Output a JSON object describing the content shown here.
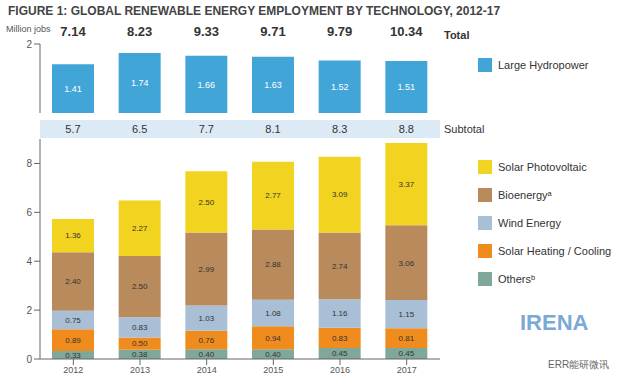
{
  "title": "FIGURE 1: GLOBAL RENEWABLE ENERGY EMPLOYMENT BY TECHNOLOGY, 2012-17",
  "annotations": [
    "IRENA",
    "ERR能研微讯"
  ],
  "chart_data": [
    {
      "type": "bar",
      "y_label": "Million jobs",
      "categories": [
        "2012",
        "2013",
        "2014",
        "2015",
        "2016",
        "2017"
      ],
      "series": [
        {
          "name": "Large Hydropower",
          "color": "#41a5d8",
          "values": [
            1.41,
            1.74,
            1.66,
            1.63,
            1.52,
            1.51
          ]
        }
      ],
      "totals": [
        7.14,
        8.23,
        9.33,
        9.71,
        9.79,
        10.34
      ],
      "totals_label": "Total",
      "ylim": [
        0,
        2
      ],
      "yticks": [
        0,
        2
      ],
      "data_labels": true,
      "tick_labels": "y",
      "grid": false
    },
    {
      "type": "bar",
      "stacked": true,
      "categories": [
        "2012",
        "2013",
        "2014",
        "2015",
        "2016",
        "2017"
      ],
      "series": [
        {
          "name": "Othersᵇ",
          "color": "#7fa89a",
          "values": [
            0.33,
            0.38,
            0.4,
            0.4,
            0.45,
            0.45
          ],
          "value_labels": [
            "0.33",
            "0.38",
            "0.40",
            "0.40",
            "0.45",
            "0.45"
          ]
        },
        {
          "name": "Solar Heating / Cooling",
          "color": "#f08c1e",
          "values": [
            0.89,
            0.5,
            0.76,
            0.94,
            0.83,
            0.81
          ],
          "value_labels": [
            "0.89",
            "0.50",
            "0.76",
            "0.94",
            "0.83",
            "0.81"
          ]
        },
        {
          "name": "Wind Energy",
          "color": "#a9bfd6",
          "values": [
            0.75,
            0.83,
            1.03,
            1.08,
            1.16,
            1.15
          ],
          "value_labels": [
            "0.75",
            "0.83",
            "1.03",
            "1.08",
            "1.16",
            "1.15"
          ]
        },
        {
          "name": "Bioenergyᵃ",
          "color": "#b88a5c",
          "values": [
            2.4,
            2.5,
            2.99,
            2.88,
            2.74,
            3.06
          ],
          "value_labels": [
            "2.40",
            "2.50",
            "2.99",
            "2.88",
            "2.74",
            "3.06"
          ]
        },
        {
          "name": "Solar Photovoltaic",
          "color": "#f2d320",
          "values": [
            1.36,
            2.27,
            2.5,
            2.77,
            3.09,
            3.37
          ],
          "value_labels": [
            "1.36",
            "2.27",
            "2.50",
            "2.77",
            "3.09",
            "3.37"
          ]
        }
      ],
      "subtotals": [
        5.7,
        6.5,
        7.7,
        8.1,
        8.3,
        8.8
      ],
      "subtotals_label": "Subtotal",
      "ylim": [
        0,
        9
      ],
      "yticks": [
        0,
        2,
        4,
        6,
        8
      ],
      "data_labels": true,
      "grid": false
    }
  ]
}
